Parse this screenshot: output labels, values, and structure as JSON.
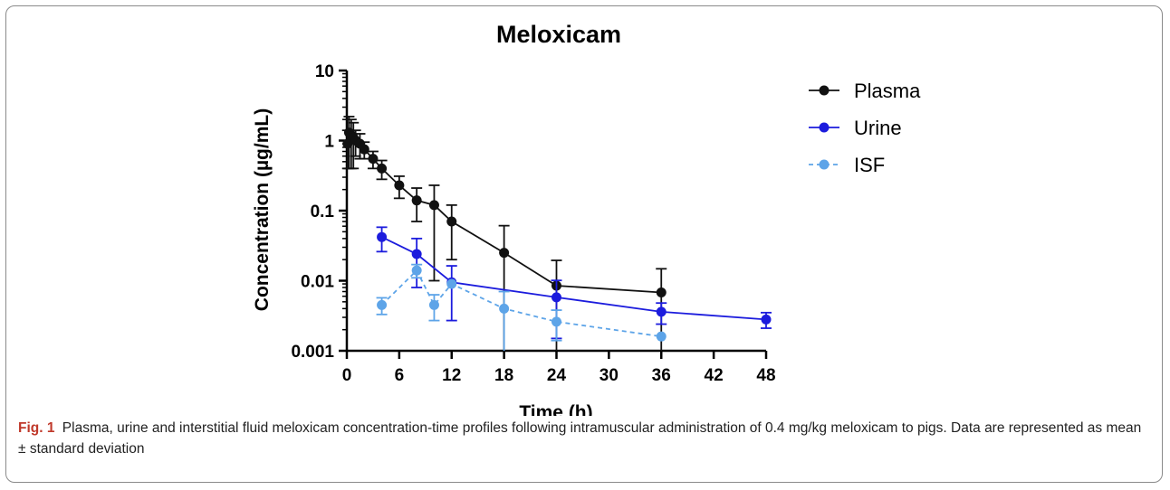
{
  "chart_data": {
    "type": "line",
    "title": "Meloxicam",
    "xlabel": "Time (h)",
    "ylabel": "Concentration (µg/mL)",
    "xlim": [
      0,
      48
    ],
    "ylim": [
      0.001,
      10
    ],
    "yscale": "log",
    "x_ticks": [
      0,
      6,
      12,
      18,
      24,
      30,
      36,
      42,
      48
    ],
    "x_tick_labels": [
      "0",
      "6",
      "12",
      "18",
      "24",
      "30",
      "36",
      "42",
      "48"
    ],
    "y_ticks": [
      0.001,
      0.01,
      0.1,
      1,
      10
    ],
    "y_tick_labels": [
      "0.001",
      "0.01",
      "0.1",
      "1",
      "10"
    ],
    "grid": false,
    "legend_position": "right",
    "series": [
      {
        "name": "Plasma",
        "color": "#111111",
        "dashed": false,
        "points": [
          {
            "x": 0.08,
            "y": 0.9,
            "err": 0.5
          },
          {
            "x": 0.25,
            "y": 1.3,
            "err": 0.9
          },
          {
            "x": 0.5,
            "y": 1.2,
            "err": 0.8
          },
          {
            "x": 0.75,
            "y": 1.1,
            "err": 0.7
          },
          {
            "x": 1,
            "y": 1.0,
            "err": 0.4
          },
          {
            "x": 1.5,
            "y": 0.9,
            "err": 0.35
          },
          {
            "x": 2,
            "y": 0.75,
            "err": 0.2
          },
          {
            "x": 3,
            "y": 0.55,
            "err": 0.15
          },
          {
            "x": 4,
            "y": 0.4,
            "err": 0.12
          },
          {
            "x": 6,
            "y": 0.23,
            "err": 0.08
          },
          {
            "x": 8,
            "y": 0.14,
            "err": 0.07
          },
          {
            "x": 10,
            "y": 0.12,
            "err": 0.11
          },
          {
            "x": 12,
            "y": 0.07,
            "err": 0.05
          },
          {
            "x": 18,
            "y": 0.025,
            "err": 0.036
          },
          {
            "x": 24,
            "y": 0.0085,
            "err": 0.011
          },
          {
            "x": 36,
            "y": 0.0068,
            "err": 0.008
          }
        ]
      },
      {
        "name": "Urine",
        "color": "#1c1cdd",
        "dashed": false,
        "points": [
          {
            "x": 4,
            "y": 0.042,
            "err": 0.016
          },
          {
            "x": 8,
            "y": 0.024,
            "err": 0.016
          },
          {
            "x": 12,
            "y": 0.0095,
            "err": 0.0068
          },
          {
            "x": 24,
            "y": 0.0058,
            "err": 0.0043
          },
          {
            "x": 36,
            "y": 0.0036,
            "err": 0.0012
          },
          {
            "x": 48,
            "y": 0.0028,
            "err": 0.0007
          }
        ]
      },
      {
        "name": "ISF",
        "color": "#5da4e8",
        "dashed": true,
        "points": [
          {
            "x": 4,
            "y": 0.0045,
            "err": 0.0012
          },
          {
            "x": 8,
            "y": 0.014,
            "err": 0.003
          },
          {
            "x": 10,
            "y": 0.0045,
            "err": 0.0018
          },
          {
            "x": 12,
            "y": 0.009,
            "err": 0.0
          },
          {
            "x": 18,
            "y": 0.004,
            "err": 0.003
          },
          {
            "x": 24,
            "y": 0.0026,
            "err": 0.0012
          },
          {
            "x": 36,
            "y": 0.0016,
            "err": 0.0
          }
        ]
      }
    ]
  },
  "caption": {
    "label": "Fig. 1",
    "text": "Plasma, urine and interstitial fluid meloxicam concentration-time profiles following intramuscular administration of 0.4 mg/kg meloxicam to pigs. Data are represented as mean ± standard deviation"
  }
}
